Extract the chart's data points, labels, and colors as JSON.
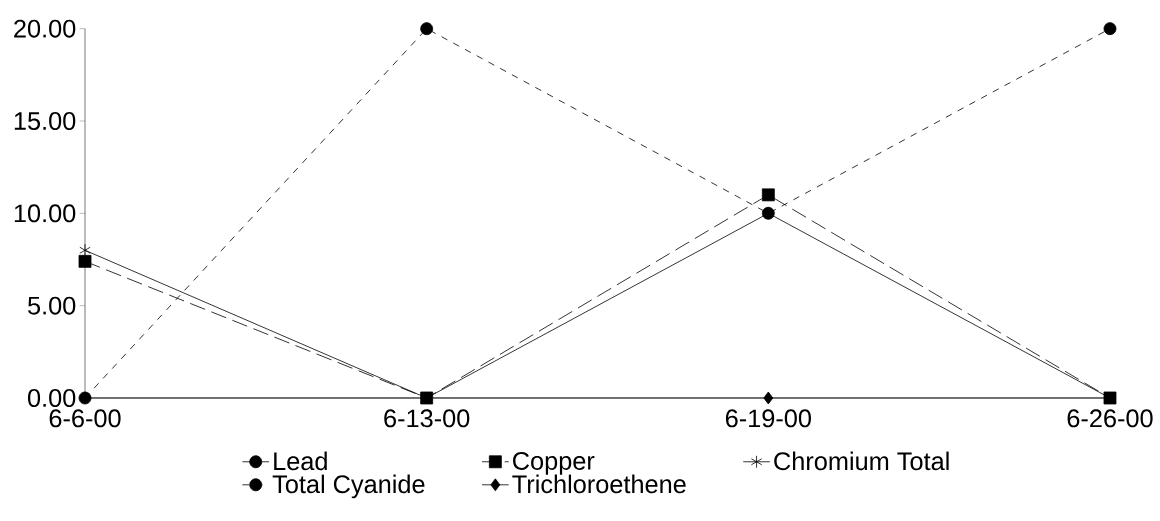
{
  "chart_data": {
    "type": "line",
    "categories": [
      "6-6-00",
      "6-13-00",
      "6-19-00",
      "6-26-00"
    ],
    "ylim": [
      0,
      20
    ],
    "yticks": [
      {
        "value": 0,
        "label": "0.00"
      },
      {
        "value": 5,
        "label": "5.00"
      },
      {
        "value": 10,
        "label": "10.00"
      },
      {
        "value": 15,
        "label": "15.00"
      },
      {
        "value": 20,
        "label": "20.00"
      }
    ],
    "grid": false,
    "legend": "bottom",
    "series": [
      {
        "name": "Lead",
        "color": "#000000",
        "marker": "circle",
        "line_style": "solid",
        "values": [
          null,
          null,
          null,
          null
        ]
      },
      {
        "name": "Copper",
        "color": "#000000",
        "marker": "square",
        "line_style": "dashed",
        "values": [
          7.4,
          0,
          11,
          0
        ]
      },
      {
        "name": "Chromium Total",
        "color": "#000000",
        "marker": "cross",
        "line_style": "solid",
        "values": [
          8,
          0,
          10,
          0
        ]
      },
      {
        "name": "Total Cyanide",
        "color": "#000000",
        "marker": "circle",
        "line_style": "dotted",
        "values": [
          0,
          20,
          10,
          20
        ]
      },
      {
        "name": "Trichloroethene",
        "color": "#000000",
        "marker": "diamond",
        "line_style": "solid",
        "values": [
          0,
          0,
          0,
          0
        ]
      }
    ]
  }
}
